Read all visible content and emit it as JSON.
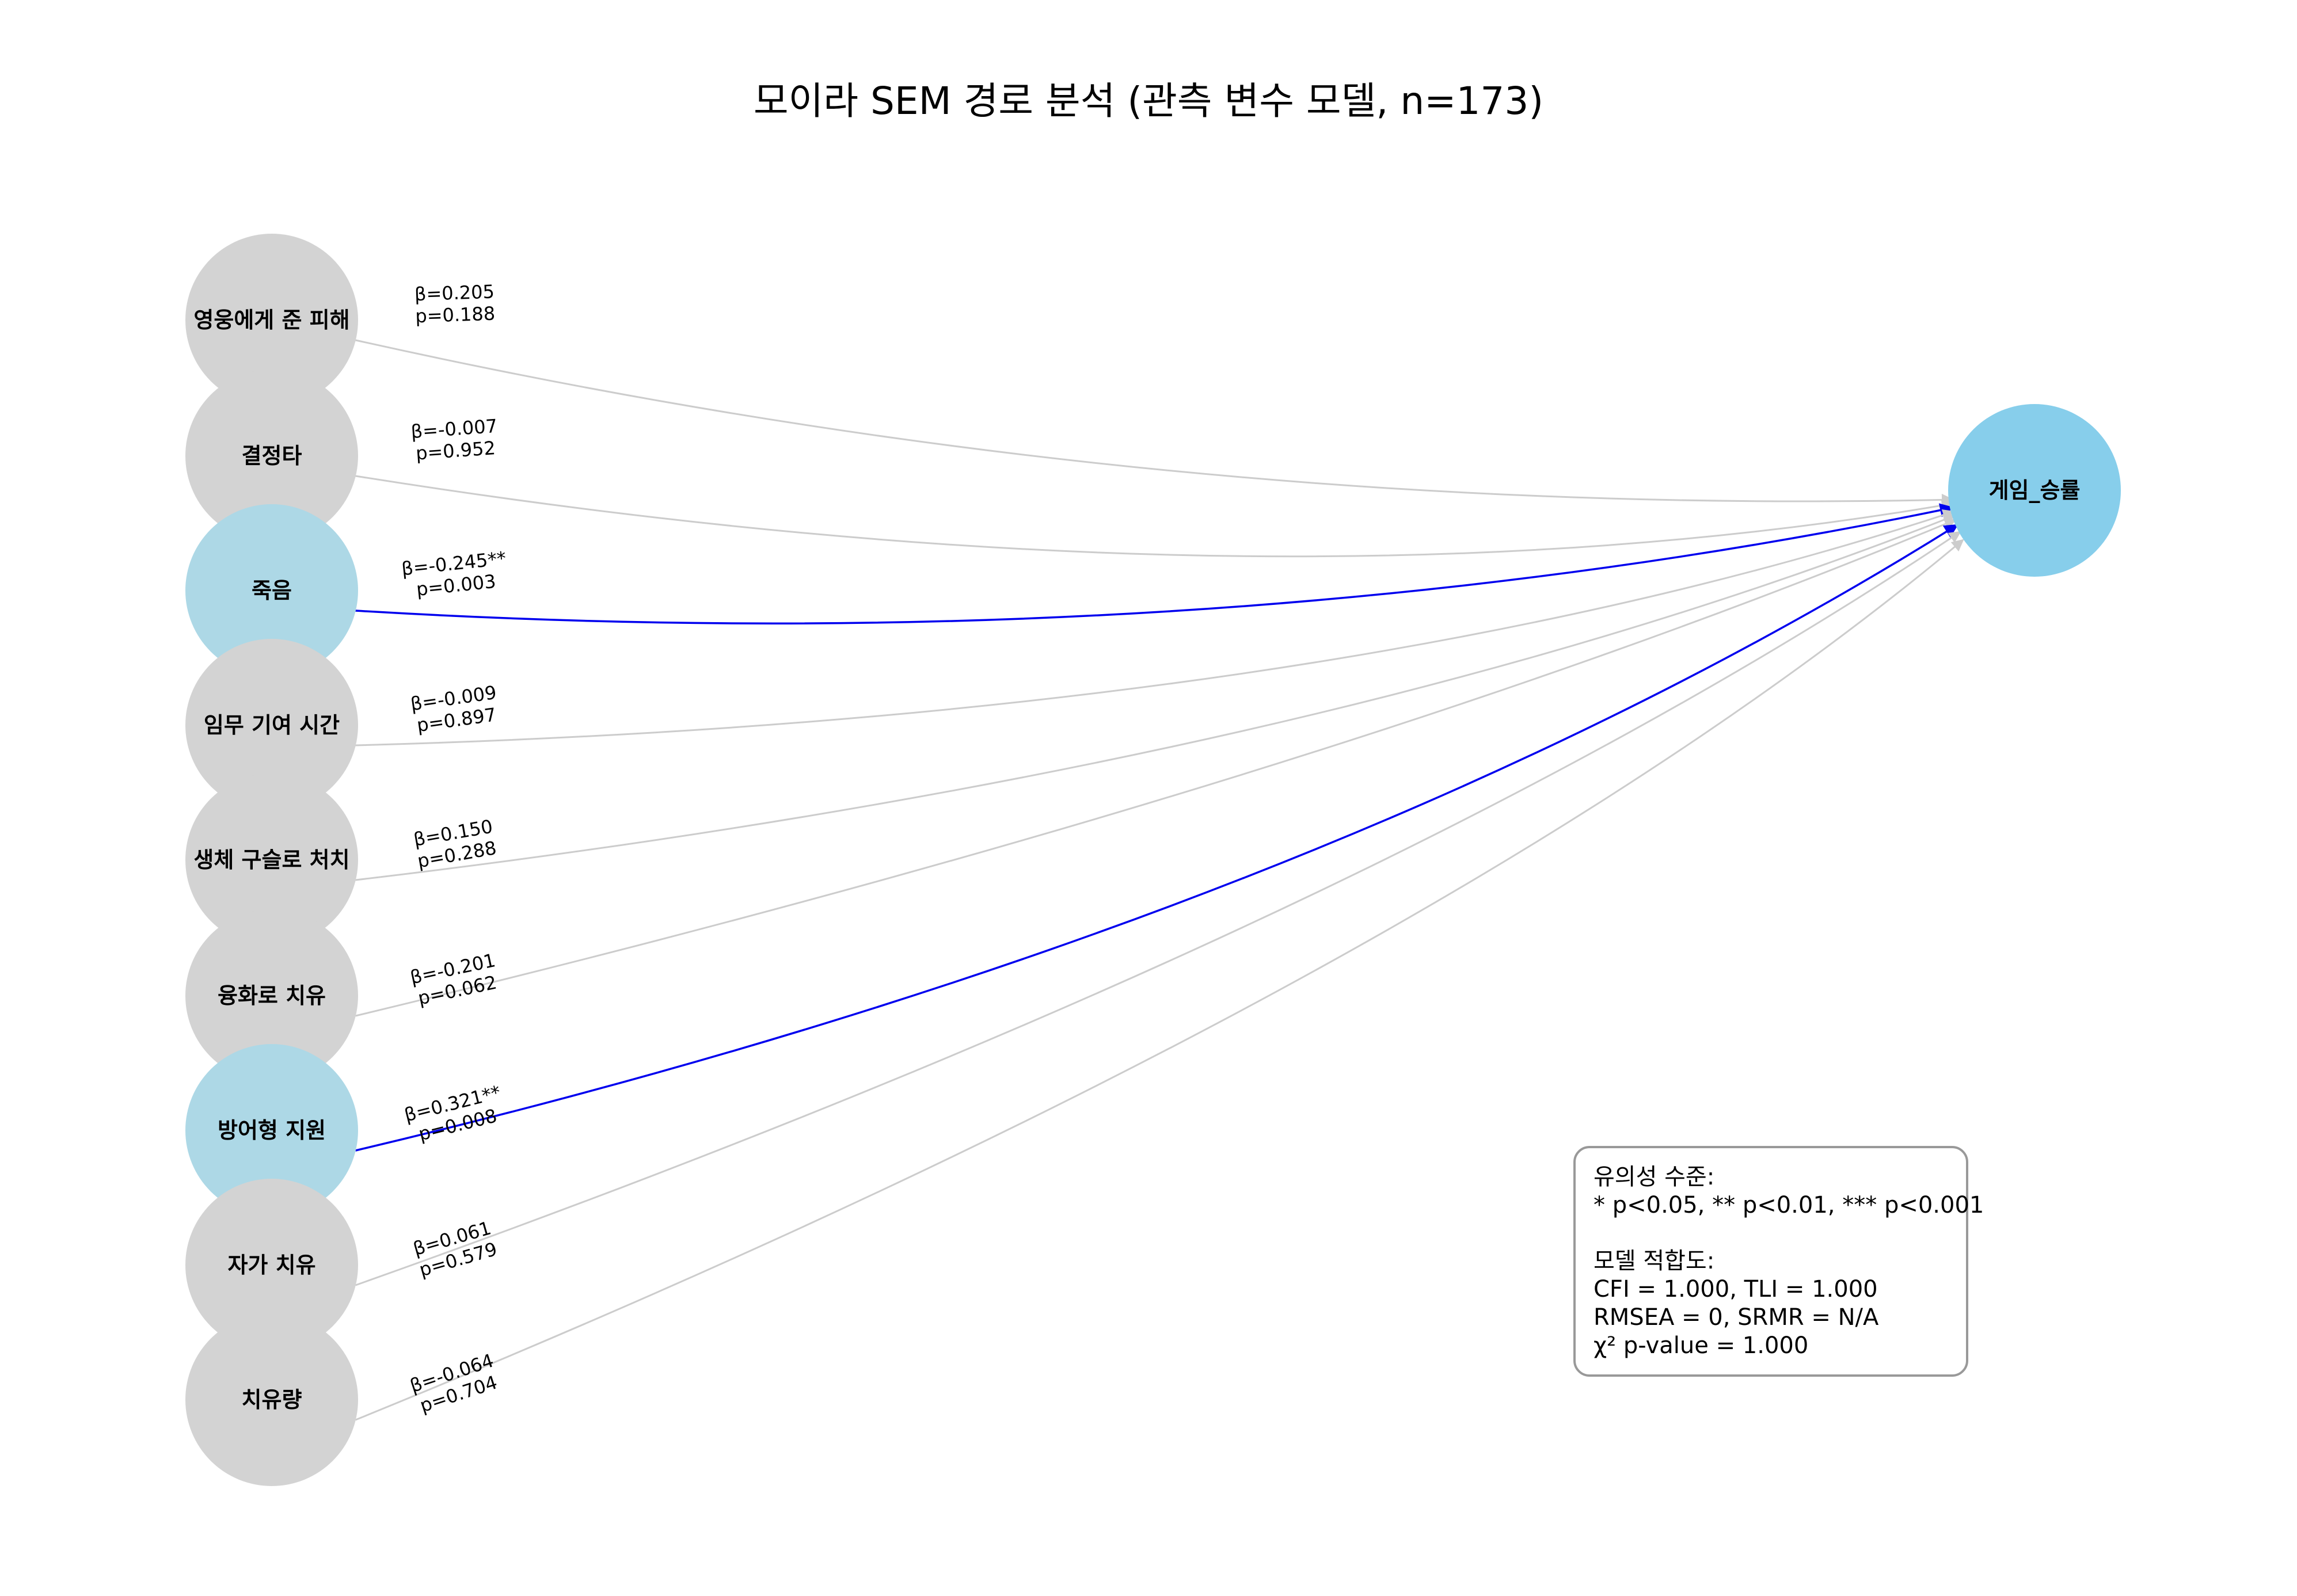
{
  "title": "모이라 SEM 경로 분석 (관측 변수 모델, n=173)",
  "colors": {
    "node_default": "#d3d3d3",
    "node_significant": "#add8e6",
    "node_target": "#87ceeb",
    "edge_default": "#cccccc",
    "edge_significant": "#0000ee"
  },
  "target": {
    "label": "게임_승률"
  },
  "predictors": [
    {
      "label": "영웅에게 준 피해",
      "beta": "β=0.205",
      "p": "p=0.188",
      "significant": false
    },
    {
      "label": "결정타",
      "beta": "β=-0.007",
      "p": "p=0.952",
      "significant": false
    },
    {
      "label": "죽음",
      "beta": "β=-0.245**",
      "p": "p=0.003",
      "significant": true
    },
    {
      "label": "임무 기여 시간",
      "beta": "β=-0.009",
      "p": "p=0.897",
      "significant": false
    },
    {
      "label": "생체 구슬로 처치",
      "beta": "β=0.150",
      "p": "p=0.288",
      "significant": false
    },
    {
      "label": "융화로 치유",
      "beta": "β=-0.201",
      "p": "p=0.062",
      "significant": false
    },
    {
      "label": "방어형 지원",
      "beta": "β=0.321**",
      "p": "p=0.008",
      "significant": true
    },
    {
      "label": "자가 치유",
      "beta": "β=0.061",
      "p": "p=0.579",
      "significant": false
    },
    {
      "label": "치유량",
      "beta": "β=-0.064",
      "p": "p=0.704",
      "significant": false
    }
  ],
  "legend": {
    "lines": [
      "유의성 수준:",
      "* p<0.05, ** p<0.01, *** p<0.001",
      "",
      "모델 적합도:",
      "CFI = 1.000, TLI = 1.000",
      "RMSEA = 0, SRMR = N/A",
      "χ² p-value = 1.000"
    ]
  }
}
